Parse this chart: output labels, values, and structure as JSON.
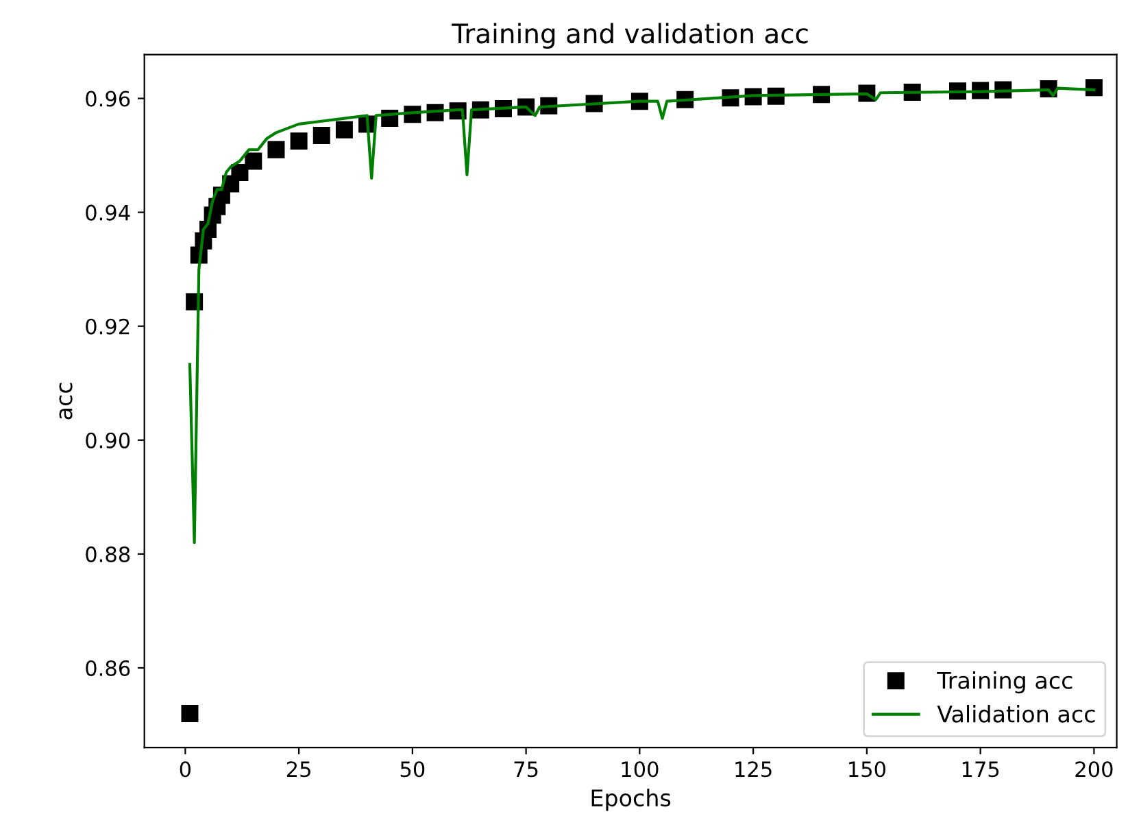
{
  "chart_data": {
    "type": "line",
    "title": "Training and validation acc",
    "xlabel": "Epochs",
    "ylabel": "acc",
    "xlim": [
      -9,
      205
    ],
    "ylim": [
      0.846,
      0.9677
    ],
    "xticks": [
      0,
      25,
      50,
      75,
      100,
      125,
      150,
      175,
      200
    ],
    "yticks": [
      0.86,
      0.88,
      {
        "value": 0.9,
        "label": "0.90"
      },
      0.92,
      0.94,
      0.96
    ],
    "legend": "bottom right",
    "grid": false,
    "series": [
      {
        "name": "Training acc",
        "type": "scatter",
        "marker": "square",
        "color": "#000000",
        "x": [
          1,
          2,
          3,
          4,
          5,
          6,
          7,
          8,
          10,
          12,
          15,
          20,
          25,
          30,
          35,
          40,
          45,
          50,
          55,
          60,
          65,
          70,
          75,
          80,
          90,
          100,
          110,
          120,
          125,
          130,
          140,
          150,
          160,
          170,
          175,
          180,
          190,
          200
        ],
        "values": [
          0.852,
          0.9243,
          0.9325,
          0.935,
          0.937,
          0.9395,
          0.941,
          0.943,
          0.945,
          0.947,
          0.949,
          0.951,
          0.9525,
          0.9535,
          0.9545,
          0.9555,
          0.9565,
          0.9572,
          0.9575,
          0.9578,
          0.958,
          0.9582,
          0.9585,
          0.9587,
          0.9591,
          0.9595,
          0.9598,
          0.9601,
          0.9603,
          0.9604,
          0.9607,
          0.9609,
          0.9611,
          0.9613,
          0.9614,
          0.9615,
          0.9617,
          0.9619
        ]
      },
      {
        "name": "Validation acc",
        "marker": "none",
        "color": "#008000",
        "x": [
          1,
          2,
          3,
          4,
          5,
          6,
          7,
          8,
          9,
          10,
          12,
          14,
          16,
          18,
          20,
          25,
          30,
          35,
          40,
          41,
          42,
          50,
          60,
          61,
          62,
          63,
          75,
          77,
          78,
          100,
          104,
          105,
          106,
          125,
          150,
          152,
          153,
          175,
          190,
          191,
          192,
          200
        ],
        "values": [
          0.9133,
          0.882,
          0.93,
          0.937,
          0.938,
          0.942,
          0.944,
          0.944,
          0.947,
          0.948,
          0.949,
          0.951,
          0.951,
          0.953,
          0.954,
          0.9555,
          0.956,
          0.9565,
          0.957,
          0.946,
          0.957,
          0.9575,
          0.958,
          0.958,
          0.9466,
          0.958,
          0.9585,
          0.957,
          0.9585,
          0.9595,
          0.9595,
          0.9565,
          0.9595,
          0.9605,
          0.9608,
          0.9598,
          0.961,
          0.9612,
          0.9615,
          0.9605,
          0.9618,
          0.9615
        ]
      }
    ]
  }
}
